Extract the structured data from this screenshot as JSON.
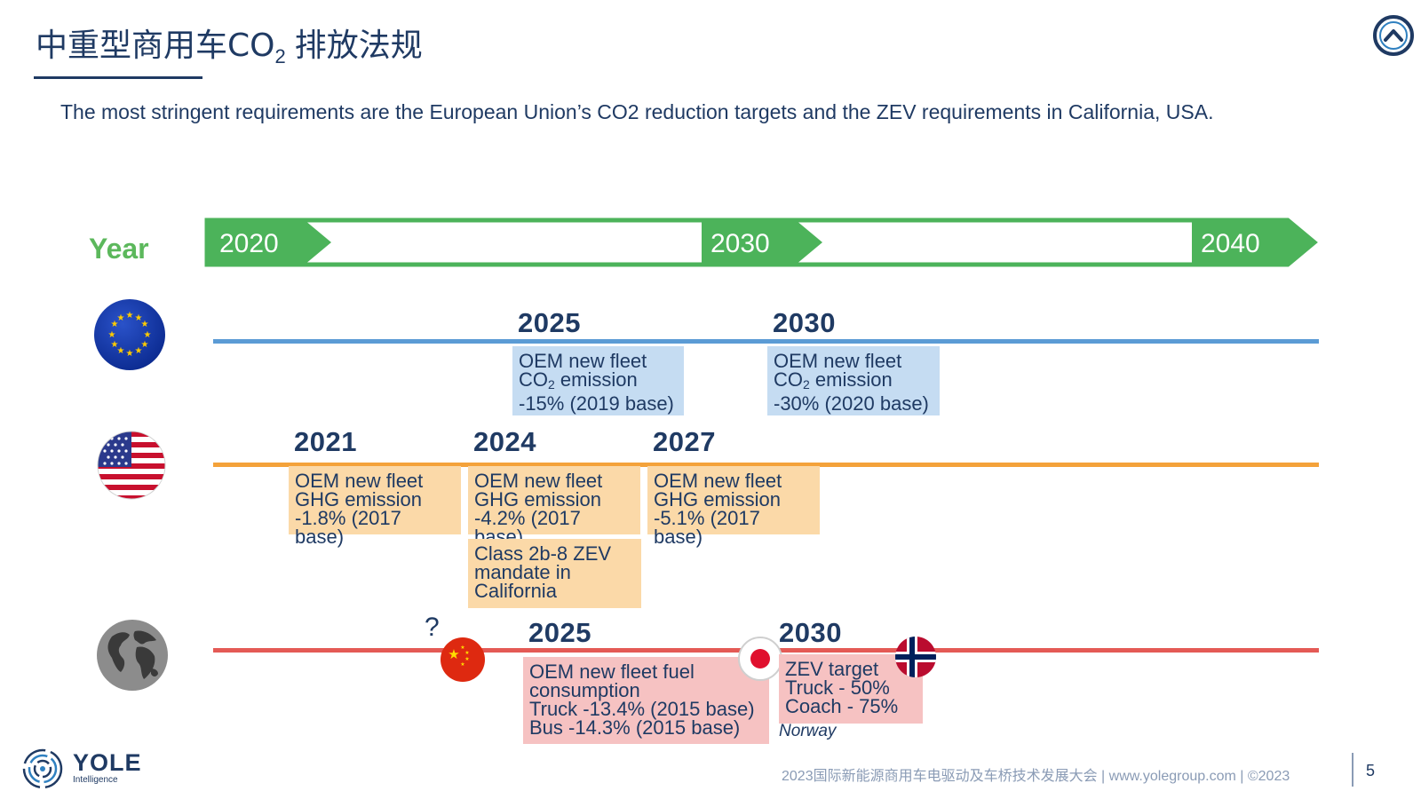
{
  "title": {
    "main": "中重型商用车",
    "co": "CO",
    "sub": "2",
    "tail": " 排放法规"
  },
  "subtitle": "The most stringent requirements are the European Union’s CO2 reduction targets and the ZEV requirements in California, USA.",
  "timeline": {
    "label": "Year",
    "years": [
      "2020",
      "2030",
      "2040"
    ]
  },
  "eu": {
    "flag_icon": "eu-flag-icon",
    "events": [
      {
        "year": "2025",
        "line1": "OEM new fleet",
        "line2_a": "CO",
        "line2_sub": "2",
        "line2_b": " emission",
        "line3": "-15% (2019 base)"
      },
      {
        "year": "2030",
        "line1": "OEM new fleet",
        "line2_a": "CO",
        "line2_sub": "2",
        "line2_b": " emission",
        "line3": "-30% (2020 base)"
      }
    ]
  },
  "us": {
    "flag_icon": "usa-flag-icon",
    "events": [
      {
        "year": "2021",
        "line1": "OEM new fleet",
        "line2": "GHG emission",
        "line3": "-1.8% (2017 base)"
      },
      {
        "year": "2024",
        "line1": "OEM new fleet",
        "line2": "GHG emission",
        "line3": "-4.2% (2017 base)"
      },
      {
        "year": "2027",
        "line1": "OEM new fleet",
        "line2": "GHG emission",
        "line3": "-5.1% (2017 base)"
      }
    ],
    "california": {
      "line1": "Class 2b-8 ZEV",
      "line2": "mandate in",
      "line3": "California"
    }
  },
  "world": {
    "globe_icon": "globe-icon",
    "china_question": "?",
    "events": [
      {
        "year": "2025",
        "line1": "OEM new fleet fuel",
        "line2": "consumption",
        "line3": "Truck -13.4% (2015 base)",
        "line4": "Bus -14.3% (2015 base)"
      },
      {
        "year": "2030",
        "line1": "ZEV target",
        "line2": "Truck - 50%",
        "line3": "Coach - 75%"
      }
    ],
    "norway_label": "Norway"
  },
  "colors": {
    "green": "#4cb35a",
    "blue_line": "#5b9bd5",
    "orange_line": "#f4a23a",
    "red_line": "#e45a55",
    "box_blue": "#c5dcf2",
    "box_orange": "#fbd9a8",
    "box_pink": "#f6c2c2",
    "navy": "#1f3a63"
  },
  "footer": {
    "brand": "YOLE",
    "brand_sub": "Intelligence",
    "text": "2023国际新能源商用车电驱动及车桥技术发展大会 | www.yolegroup.com | ©2023",
    "page": "5"
  }
}
